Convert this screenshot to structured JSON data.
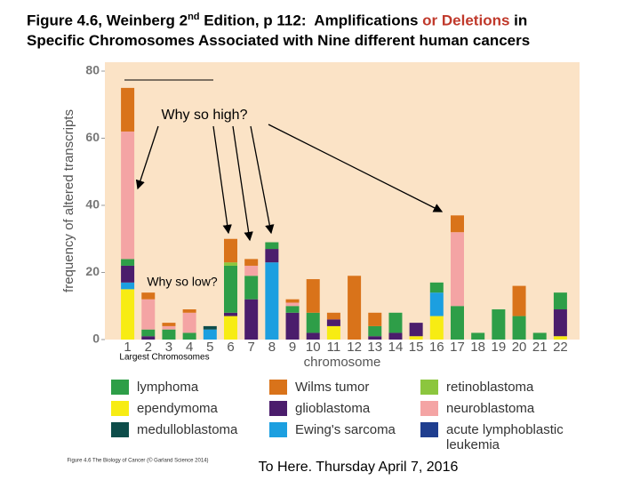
{
  "header": {
    "prefix": "Figure 4.6, Weinberg 2",
    "superscript": "nd",
    "middle": " Edition, p 112:  Amplifications ",
    "highlight": "or Deletions",
    "suffix": " in",
    "line2": "Specific Chromosomes Associated with Nine different human cancers"
  },
  "annotations": {
    "high": "Why so high?",
    "low": "Why so low?",
    "largest": "Largest Chromosomes",
    "credit": "Figure 4.6 The Biology of Cancer (© Garland Science 2014)",
    "footer": "To Here. Thursday April 7, 2016"
  },
  "chart_data": {
    "type": "stacked_bar",
    "x_label": "chromosome",
    "y_label": "frequency of altered transcripts",
    "categories": [
      "1",
      "2",
      "3",
      "4",
      "5",
      "6",
      "7",
      "8",
      "9",
      "10",
      "11",
      "12",
      "13",
      "14",
      "15",
      "16",
      "17",
      "18",
      "19",
      "20",
      "21",
      "22"
    ],
    "ylim": [
      0,
      80
    ],
    "yticks": [
      0,
      20,
      40,
      60,
      80
    ],
    "background": "#fbe3c6",
    "series": [
      {
        "name": "ependymoma",
        "color": "#f7ec13",
        "values": [
          15,
          0,
          0,
          0,
          0,
          7,
          0,
          0,
          0,
          0,
          4,
          0,
          0,
          0,
          1,
          7,
          0,
          0,
          0,
          0,
          0,
          1
        ]
      },
      {
        "name": "Ewing's sarcoma",
        "color": "#1c9fe0",
        "values": [
          2,
          0,
          0,
          0,
          3,
          0,
          0,
          23,
          0,
          0,
          0,
          0,
          0,
          0,
          0,
          7,
          0,
          0,
          0,
          0,
          0,
          0
        ]
      },
      {
        "name": "glioblastoma",
        "color": "#4b1d6c",
        "values": [
          5,
          1,
          0,
          0,
          0,
          1,
          12,
          4,
          8,
          2,
          2,
          0,
          1,
          2,
          4,
          0,
          0,
          0,
          0,
          0,
          0,
          8
        ]
      },
      {
        "name": "medulloblastoma",
        "color": "#0e4d4a",
        "values": [
          0,
          0,
          0,
          0,
          1,
          0,
          0,
          0,
          0,
          0,
          0,
          0,
          0,
          0,
          0,
          0,
          0,
          0,
          0,
          0,
          0,
          0
        ]
      },
      {
        "name": "lymphoma",
        "color": "#2e9e48",
        "values": [
          2,
          2,
          3,
          2,
          0,
          14,
          7,
          2,
          2,
          6,
          0,
          0,
          3,
          6,
          0,
          3,
          10,
          2,
          9,
          7,
          2,
          5
        ]
      },
      {
        "name": "retinoblastoma",
        "color": "#8cc63e",
        "values": [
          0,
          0,
          0,
          0,
          0,
          1,
          0,
          0,
          0,
          0,
          0,
          0,
          0,
          0,
          0,
          0,
          0,
          0,
          0,
          0,
          0,
          0
        ]
      },
      {
        "name": "acute lymphoblastic leukemia",
        "color": "#1f3e8f",
        "values": [
          0,
          0,
          0,
          0,
          0,
          0,
          0,
          0,
          0,
          0,
          0,
          0,
          0,
          0,
          0,
          0,
          0,
          0,
          0,
          0,
          0,
          0
        ]
      },
      {
        "name": "neuroblastoma",
        "color": "#f4a4a4",
        "values": [
          38,
          9,
          1,
          6,
          0,
          0,
          3,
          0,
          1,
          0,
          0,
          0,
          0,
          0,
          0,
          0,
          22,
          0,
          0,
          0,
          0,
          0
        ]
      },
      {
        "name": "Wilms tumor",
        "color": "#d9731a",
        "values": [
          13,
          2,
          1,
          1,
          0,
          7,
          2,
          0,
          1,
          10,
          2,
          19,
          4,
          0,
          0,
          0,
          5,
          0,
          0,
          9,
          0,
          0
        ]
      }
    ]
  }
}
